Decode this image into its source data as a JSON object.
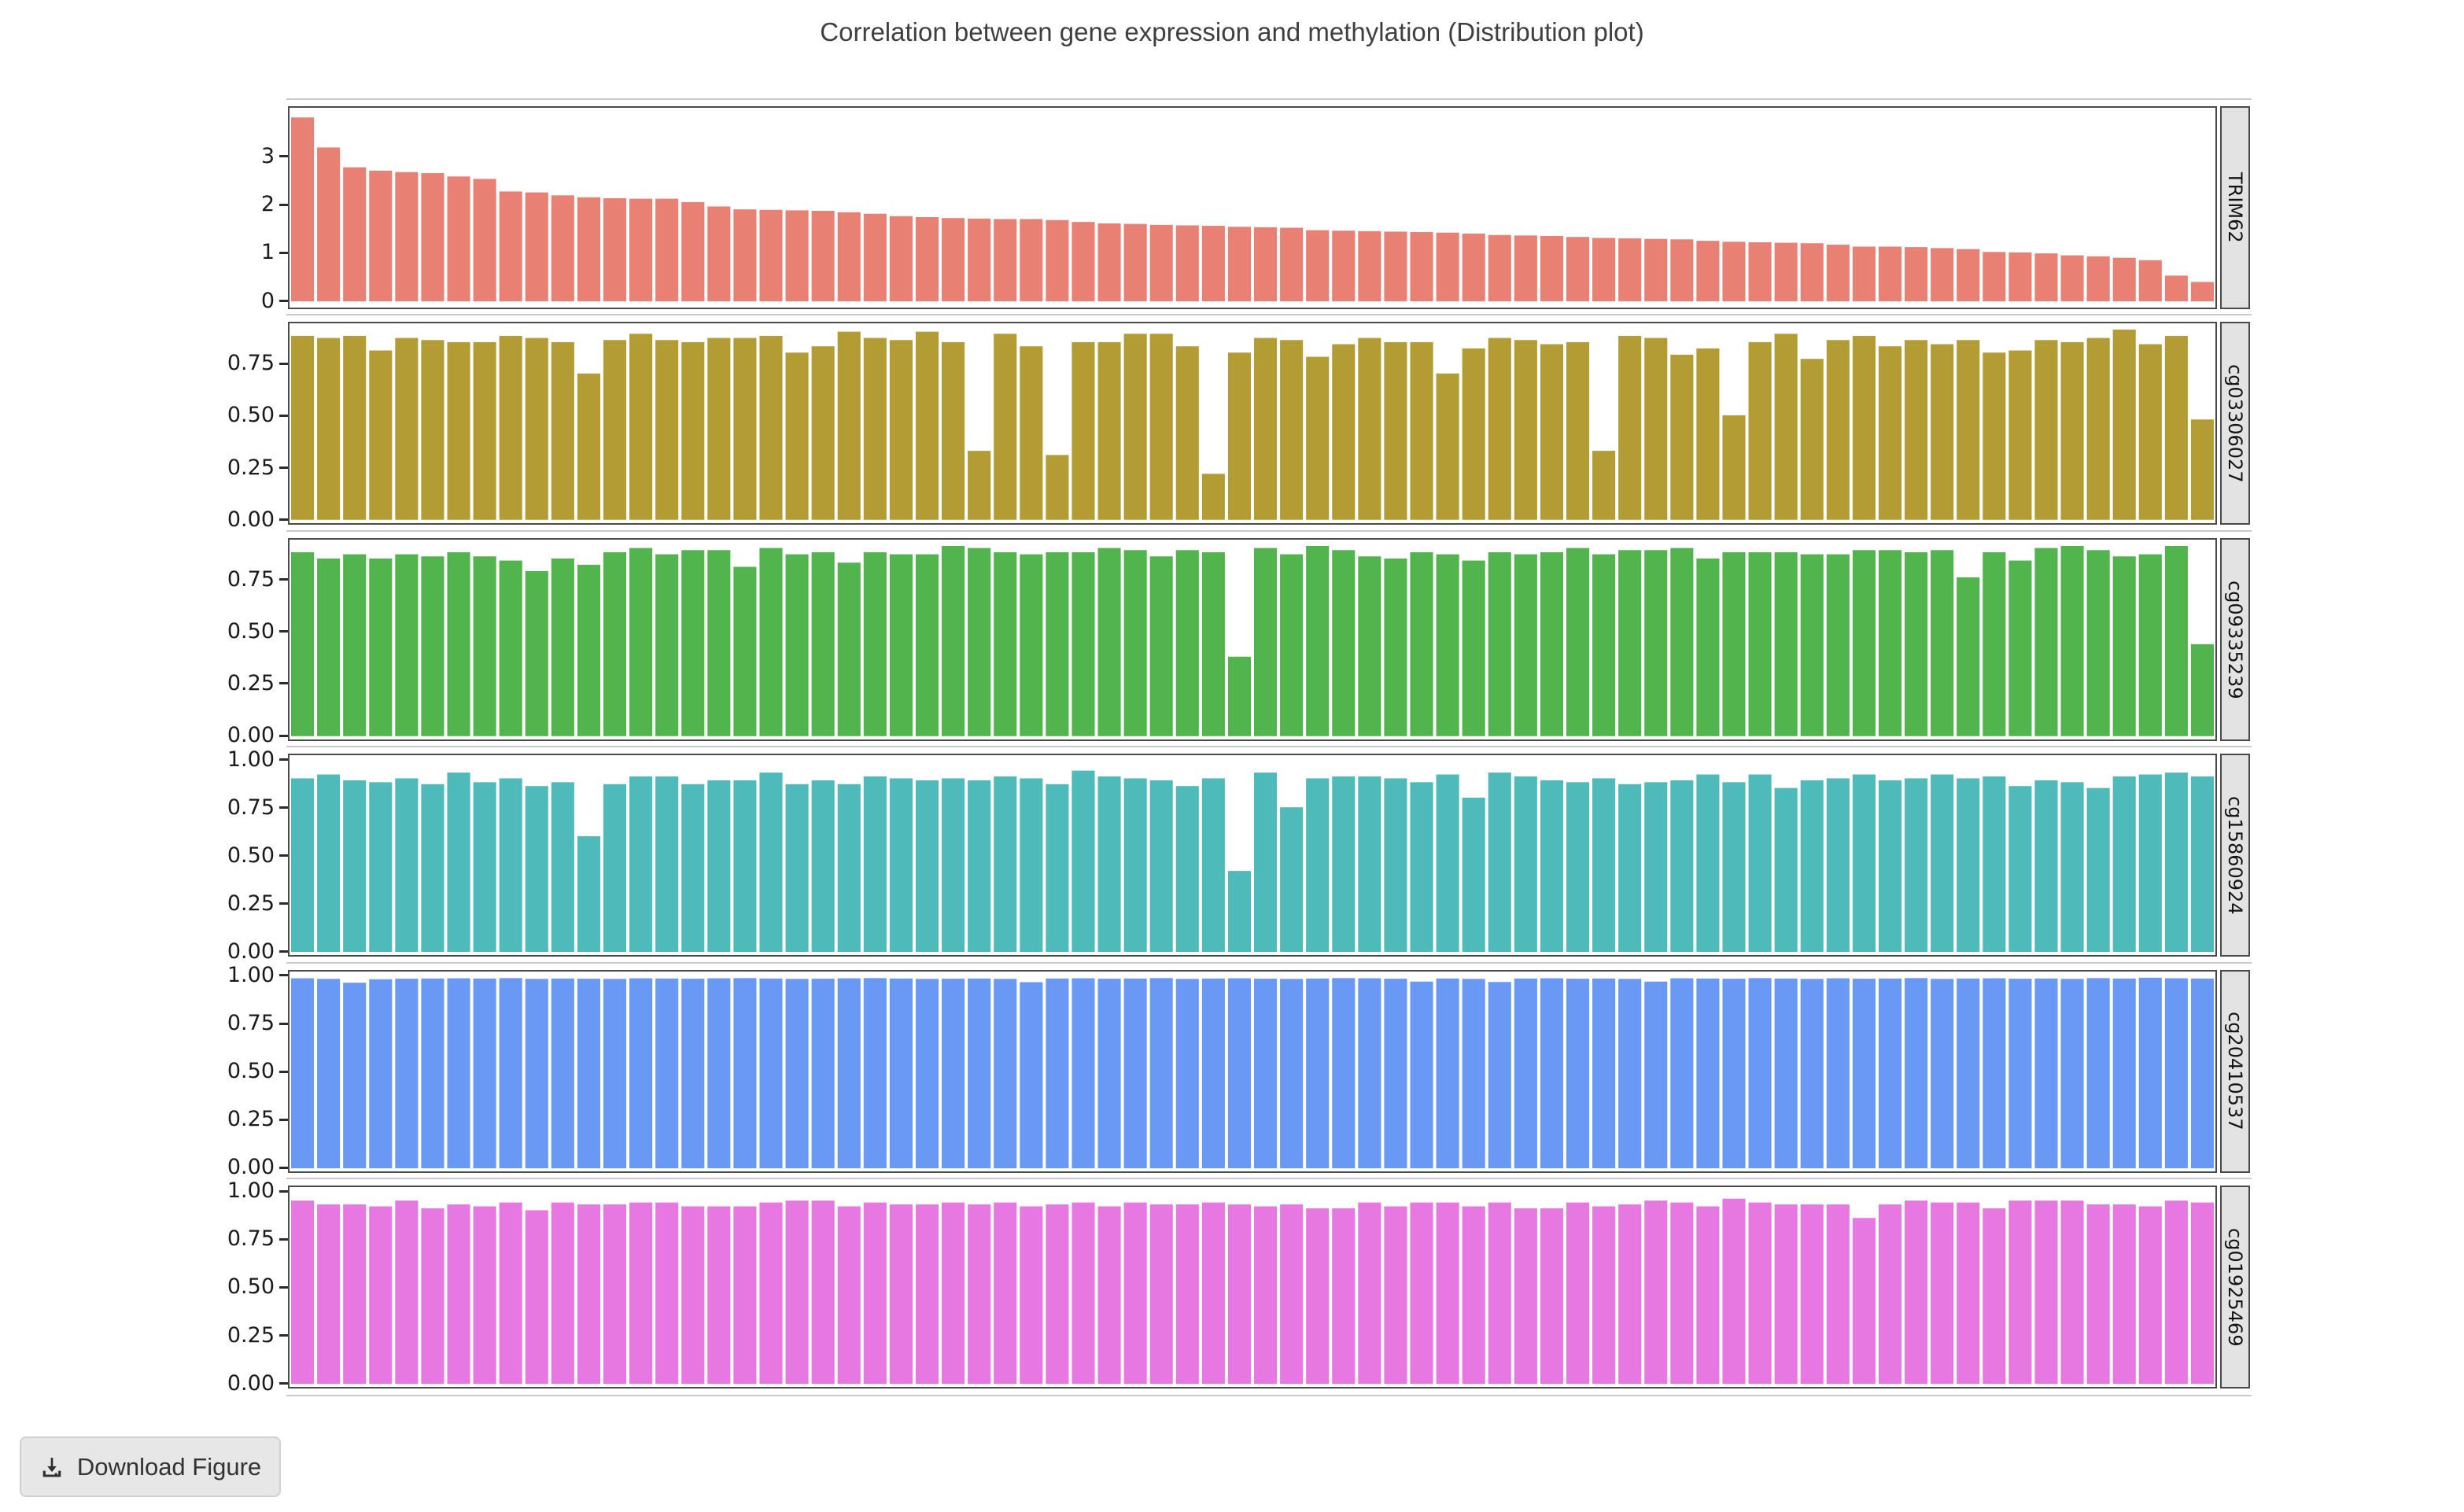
{
  "title": "Correlation between gene expression and methylation (Distribution plot)",
  "download_button": {
    "label": "Download Figure",
    "icon": "download-icon"
  },
  "colors": {
    "page_bg": "#ffffff",
    "panel_border": "#4a4a4a",
    "strip_bg": "#e3e3e3",
    "strip_border": "#4a4a4a",
    "tick_color": "#2b2b2b",
    "title_color": "#3f3f3f",
    "row_rule": "#c9c9c9",
    "button_bg": "#e7e7e7",
    "button_border": "#d0d0d0",
    "button_text": "#333333"
  },
  "chart_data": {
    "type": "bar",
    "title": "Correlation between gene expression and methylation (Distribution plot)",
    "xlabel": "",
    "ylabel": "",
    "layout": {
      "facet_label_position": "right",
      "grid": false,
      "legend": "none",
      "bar_gap_ratio": 0.12
    },
    "facets": [
      {
        "name": "TRIM62",
        "color": "#e98074",
        "ylim": [
          -0.13,
          4.0
        ],
        "yticks": [
          {
            "value": 0,
            "label": "0"
          },
          {
            "value": 1,
            "label": "1"
          },
          {
            "value": 2,
            "label": "2"
          },
          {
            "value": 3,
            "label": "3"
          }
        ],
        "values": [
          3.8,
          3.18,
          2.77,
          2.7,
          2.67,
          2.65,
          2.58,
          2.53,
          2.27,
          2.25,
          2.19,
          2.15,
          2.13,
          2.12,
          2.12,
          2.05,
          1.96,
          1.9,
          1.89,
          1.88,
          1.87,
          1.84,
          1.81,
          1.76,
          1.74,
          1.72,
          1.71,
          1.7,
          1.7,
          1.68,
          1.64,
          1.61,
          1.6,
          1.58,
          1.57,
          1.56,
          1.54,
          1.53,
          1.52,
          1.47,
          1.46,
          1.45,
          1.44,
          1.43,
          1.42,
          1.4,
          1.37,
          1.36,
          1.35,
          1.33,
          1.31,
          1.3,
          1.29,
          1.28,
          1.25,
          1.23,
          1.22,
          1.21,
          1.2,
          1.17,
          1.13,
          1.13,
          1.12,
          1.1,
          1.08,
          1.02,
          1.01,
          0.99,
          0.95,
          0.93,
          0.9,
          0.85,
          0.53,
          0.4
        ]
      },
      {
        "name": "cg03306027",
        "color": "#b49c34",
        "ylim": [
          -0.016,
          0.94
        ],
        "yticks": [
          {
            "value": 0,
            "label": "0.00"
          },
          {
            "value": 0.25,
            "label": "0.25"
          },
          {
            "value": 0.5,
            "label": "0.50"
          },
          {
            "value": 0.75,
            "label": "0.75"
          }
        ],
        "values": [
          0.88,
          0.87,
          0.88,
          0.81,
          0.87,
          0.86,
          0.85,
          0.85,
          0.88,
          0.87,
          0.85,
          0.7,
          0.86,
          0.89,
          0.86,
          0.85,
          0.87,
          0.87,
          0.88,
          0.8,
          0.83,
          0.9,
          0.87,
          0.86,
          0.9,
          0.85,
          0.33,
          0.89,
          0.83,
          0.31,
          0.85,
          0.85,
          0.89,
          0.89,
          0.83,
          0.22,
          0.8,
          0.87,
          0.86,
          0.78,
          0.84,
          0.87,
          0.85,
          0.85,
          0.7,
          0.82,
          0.87,
          0.86,
          0.84,
          0.85,
          0.33,
          0.88,
          0.87,
          0.79,
          0.82,
          0.5,
          0.85,
          0.89,
          0.77,
          0.86,
          0.88,
          0.83,
          0.86,
          0.84,
          0.86,
          0.8,
          0.81,
          0.86,
          0.85,
          0.87,
          0.91,
          0.84,
          0.88,
          0.48
        ]
      },
      {
        "name": "cg09335239",
        "color": "#52b44c",
        "ylim": [
          -0.016,
          0.94
        ],
        "yticks": [
          {
            "value": 0,
            "label": "0.00"
          },
          {
            "value": 0.25,
            "label": "0.25"
          },
          {
            "value": 0.5,
            "label": "0.50"
          },
          {
            "value": 0.75,
            "label": "0.75"
          }
        ],
        "values": [
          0.88,
          0.85,
          0.87,
          0.85,
          0.87,
          0.86,
          0.88,
          0.86,
          0.84,
          0.79,
          0.85,
          0.82,
          0.88,
          0.9,
          0.87,
          0.89,
          0.89,
          0.81,
          0.9,
          0.87,
          0.88,
          0.83,
          0.88,
          0.87,
          0.87,
          0.91,
          0.9,
          0.88,
          0.87,
          0.88,
          0.88,
          0.9,
          0.89,
          0.86,
          0.89,
          0.88,
          0.38,
          0.9,
          0.87,
          0.91,
          0.89,
          0.86,
          0.85,
          0.88,
          0.87,
          0.84,
          0.88,
          0.87,
          0.88,
          0.9,
          0.87,
          0.89,
          0.89,
          0.9,
          0.85,
          0.88,
          0.88,
          0.88,
          0.87,
          0.87,
          0.89,
          0.89,
          0.88,
          0.89,
          0.76,
          0.88,
          0.84,
          0.9,
          0.91,
          0.89,
          0.86,
          0.87,
          0.91,
          0.44
        ]
      },
      {
        "name": "cg15860924",
        "color": "#4ebaba",
        "ylim": [
          -0.016,
          1.02
        ],
        "yticks": [
          {
            "value": 0,
            "label": "0.00"
          },
          {
            "value": 0.25,
            "label": "0.25"
          },
          {
            "value": 0.5,
            "label": "0.50"
          },
          {
            "value": 0.75,
            "label": "0.75"
          },
          {
            "value": 1.0,
            "label": "1.00"
          }
        ],
        "values": [
          0.9,
          0.92,
          0.89,
          0.88,
          0.9,
          0.87,
          0.93,
          0.88,
          0.9,
          0.86,
          0.88,
          0.6,
          0.87,
          0.91,
          0.91,
          0.87,
          0.89,
          0.89,
          0.93,
          0.87,
          0.89,
          0.87,
          0.91,
          0.9,
          0.89,
          0.9,
          0.89,
          0.91,
          0.9,
          0.87,
          0.94,
          0.91,
          0.9,
          0.89,
          0.86,
          0.9,
          0.42,
          0.93,
          0.75,
          0.9,
          0.91,
          0.91,
          0.9,
          0.88,
          0.92,
          0.8,
          0.93,
          0.91,
          0.89,
          0.88,
          0.9,
          0.87,
          0.88,
          0.89,
          0.92,
          0.88,
          0.92,
          0.85,
          0.89,
          0.9,
          0.92,
          0.89,
          0.9,
          0.92,
          0.9,
          0.91,
          0.86,
          0.89,
          0.88,
          0.85,
          0.91,
          0.92,
          0.93,
          0.91
        ]
      },
      {
        "name": "cg20410537",
        "color": "#6999f5",
        "ylim": [
          -0.016,
          1.02
        ],
        "yticks": [
          {
            "value": 0,
            "label": "0.00"
          },
          {
            "value": 0.25,
            "label": "0.25"
          },
          {
            "value": 0.5,
            "label": "0.50"
          },
          {
            "value": 0.75,
            "label": "0.75"
          },
          {
            "value": 1.0,
            "label": "1.00"
          }
        ],
        "values": [
          0.985,
          0.982,
          0.962,
          0.98,
          0.983,
          0.984,
          0.985,
          0.984,
          0.986,
          0.982,
          0.984,
          0.983,
          0.982,
          0.985,
          0.984,
          0.983,
          0.985,
          0.986,
          0.984,
          0.982,
          0.983,
          0.985,
          0.986,
          0.984,
          0.982,
          0.983,
          0.984,
          0.982,
          0.965,
          0.984,
          0.985,
          0.983,
          0.984,
          0.986,
          0.982,
          0.984,
          0.985,
          0.983,
          0.982,
          0.984,
          0.986,
          0.985,
          0.983,
          0.968,
          0.984,
          0.982,
          0.966,
          0.984,
          0.985,
          0.983,
          0.984,
          0.982,
          0.968,
          0.985,
          0.984,
          0.983,
          0.986,
          0.984,
          0.982,
          0.985,
          0.983,
          0.984,
          0.986,
          0.982,
          0.984,
          0.985,
          0.983,
          0.984,
          0.982,
          0.986,
          0.984,
          0.988,
          0.985,
          0.984
        ]
      },
      {
        "name": "cg01925469",
        "color": "#e777e1",
        "ylim": [
          -0.016,
          1.02
        ],
        "yticks": [
          {
            "value": 0,
            "label": "0.00"
          },
          {
            "value": 0.25,
            "label": "0.25"
          },
          {
            "value": 0.5,
            "label": "0.50"
          },
          {
            "value": 0.75,
            "label": "0.75"
          },
          {
            "value": 1.0,
            "label": "1.00"
          }
        ],
        "values": [
          0.95,
          0.93,
          0.93,
          0.92,
          0.95,
          0.91,
          0.93,
          0.92,
          0.94,
          0.9,
          0.94,
          0.93,
          0.93,
          0.94,
          0.94,
          0.92,
          0.92,
          0.92,
          0.94,
          0.95,
          0.95,
          0.92,
          0.94,
          0.93,
          0.93,
          0.94,
          0.93,
          0.94,
          0.92,
          0.93,
          0.94,
          0.92,
          0.94,
          0.93,
          0.93,
          0.94,
          0.93,
          0.92,
          0.93,
          0.91,
          0.91,
          0.94,
          0.92,
          0.94,
          0.94,
          0.92,
          0.94,
          0.91,
          0.91,
          0.94,
          0.92,
          0.93,
          0.95,
          0.94,
          0.92,
          0.96,
          0.94,
          0.93,
          0.93,
          0.93,
          0.86,
          0.93,
          0.95,
          0.94,
          0.94,
          0.91,
          0.95,
          0.95,
          0.95,
          0.93,
          0.93,
          0.92,
          0.95,
          0.94
        ]
      }
    ]
  }
}
